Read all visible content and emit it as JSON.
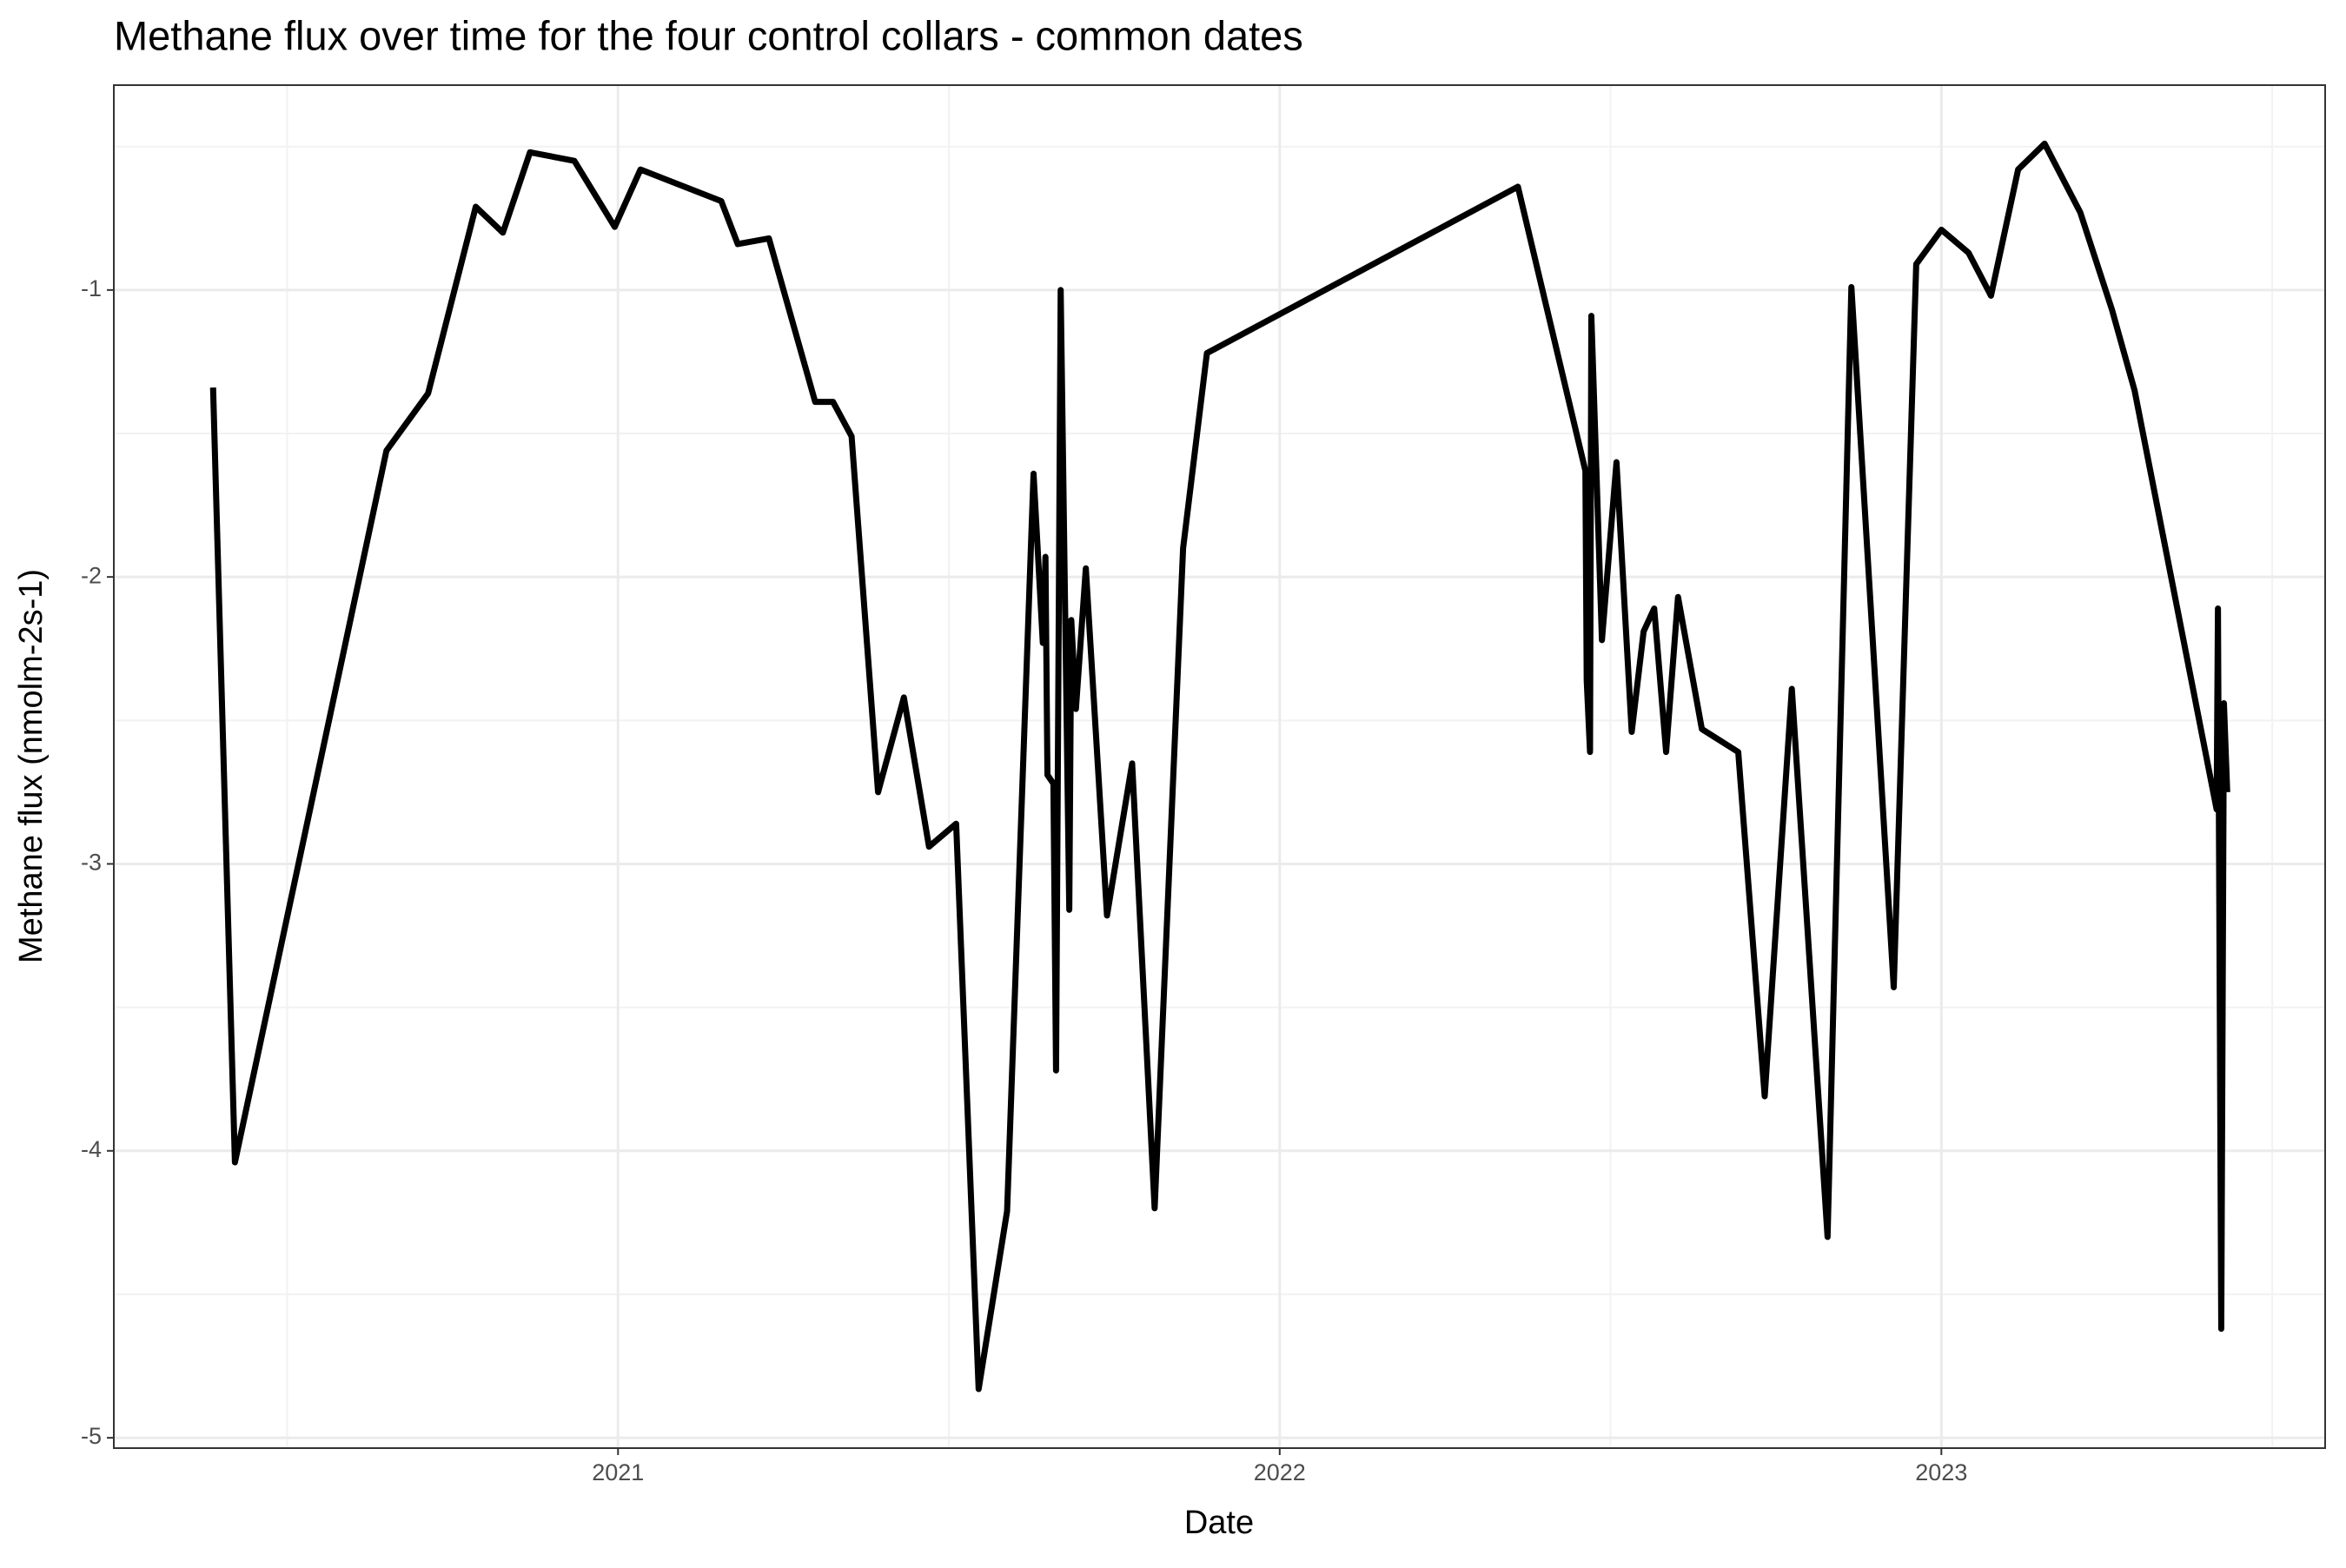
{
  "chart_data": {
    "type": "line",
    "title": "Methane flux over time for the four control collars - common dates",
    "x_label": "Date",
    "y_label": "Methane flux (nmolm-2s-1)",
    "x": [
      2020.388,
      2020.421,
      2020.65,
      2020.713,
      2020.785,
      2020.826,
      2020.867,
      2020.934,
      2020.995,
      2021.034,
      2021.156,
      2021.181,
      2021.228,
      2021.298,
      2021.325,
      2021.353,
      2021.393,
      2021.432,
      2021.47,
      2021.511,
      2021.545,
      2021.588,
      2021.628,
      2021.642,
      2021.646,
      2021.649,
      2021.658,
      2021.662,
      2021.669,
      2021.682,
      2021.685,
      2021.692,
      2021.707,
      2021.739,
      2021.777,
      2021.811,
      2021.854,
      2021.89,
      2022.36,
      2022.462,
      2022.464,
      2022.469,
      2022.471,
      2022.487,
      2022.509,
      2022.532,
      2022.55,
      2022.566,
      2022.584,
      2022.602,
      2022.638,
      2022.693,
      2022.733,
      2022.774,
      2022.828,
      2022.864,
      2022.928,
      2022.962,
      2023.0,
      2023.041,
      2023.075,
      2023.116,
      2023.156,
      2023.21,
      2023.258,
      2023.292,
      2023.416,
      2023.418,
      2023.423,
      2023.427,
      2023.432
    ],
    "series": [
      {
        "color": "#000000",
        "values": [
          -1.34,
          -4.04,
          -1.56,
          -1.36,
          -0.71,
          -0.8,
          -0.52,
          -0.55,
          -0.78,
          -0.58,
          -0.69,
          -0.84,
          -0.82,
          -1.39,
          -1.39,
          -1.51,
          -2.75,
          -2.42,
          -2.94,
          -2.86,
          -4.83,
          -4.21,
          -1.64,
          -2.23,
          -1.93,
          -2.69,
          -2.72,
          -3.72,
          -1.0,
          -3.16,
          -2.15,
          -2.46,
          -1.97,
          -3.18,
          -2.65,
          -4.2,
          -1.9,
          -1.22,
          -0.64,
          -1.63,
          -2.36,
          -2.61,
          -1.09,
          -2.22,
          -1.6,
          -2.54,
          -2.19,
          -2.11,
          -2.61,
          -2.07,
          -2.53,
          -2.61,
          -3.81,
          -2.39,
          -4.3,
          -0.99,
          -3.43,
          -0.91,
          -0.79,
          -0.87,
          -1.02,
          -0.58,
          -0.49,
          -0.73,
          -1.07,
          -1.35,
          -2.81,
          -2.11,
          -4.62,
          -2.44,
          -2.75
        ]
      }
    ],
    "xlim": [
      2020.238,
      2023.58
    ],
    "xticks": [
      2021,
      2022,
      2023
    ],
    "ylim": [
      -5.036,
      -0.286
    ],
    "yticks": [
      -5,
      -4,
      -3,
      -2,
      -1
    ],
    "grid": true
  }
}
